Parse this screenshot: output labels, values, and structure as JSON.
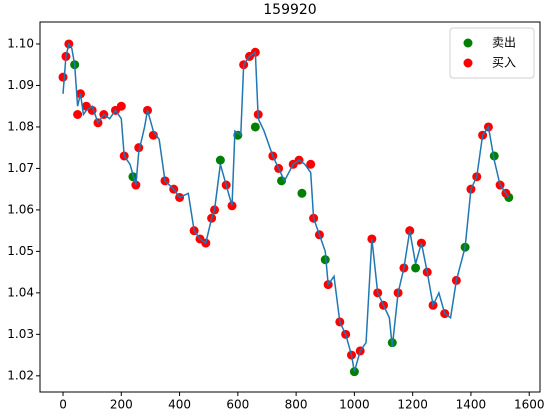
{
  "chart_data": {
    "type": "line",
    "title": "159920",
    "line": {
      "color": "#1f77b4",
      "x": [
        0,
        10,
        20,
        30,
        40,
        50,
        60,
        70,
        80,
        100,
        120,
        140,
        160,
        180,
        200,
        210,
        230,
        250,
        260,
        280,
        290,
        310,
        330,
        350,
        380,
        400,
        430,
        450,
        470,
        490,
        510,
        520,
        540,
        560,
        580,
        590,
        610,
        620,
        640,
        660,
        670,
        690,
        720,
        740,
        760,
        790,
        810,
        830,
        850,
        860,
        880,
        900,
        910,
        930,
        950,
        970,
        990,
        1000,
        1020,
        1040,
        1060,
        1080,
        1100,
        1120,
        1130,
        1150,
        1170,
        1190,
        1210,
        1230,
        1250,
        1270,
        1290,
        1310,
        1330,
        1350,
        1380,
        1400,
        1420,
        1440,
        1460,
        1480,
        1500,
        1520,
        1530
      ],
      "values": [
        1.088,
        1.097,
        1.1,
        1.099,
        1.095,
        1.085,
        1.088,
        1.083,
        1.084,
        1.085,
        1.081,
        1.083,
        1.082,
        1.084,
        1.082,
        1.073,
        1.071,
        1.066,
        1.074,
        1.08,
        1.084,
        1.079,
        1.077,
        1.067,
        1.065,
        1.063,
        1.064,
        1.055,
        1.053,
        1.052,
        1.058,
        1.06,
        1.071,
        1.066,
        1.061,
        1.079,
        1.078,
        1.095,
        1.097,
        1.098,
        1.082,
        1.079,
        1.073,
        1.07,
        1.067,
        1.071,
        1.072,
        1.071,
        1.069,
        1.058,
        1.054,
        1.05,
        1.042,
        1.044,
        1.033,
        1.03,
        1.025,
        1.021,
        1.026,
        1.028,
        1.053,
        1.04,
        1.037,
        1.034,
        1.027,
        1.04,
        1.046,
        1.055,
        1.047,
        1.052,
        1.045,
        1.037,
        1.04,
        1.035,
        1.034,
        1.043,
        1.051,
        1.065,
        1.068,
        1.078,
        1.08,
        1.072,
        1.066,
        1.064,
        1.063
      ]
    },
    "series": [
      {
        "name": "卖出",
        "color": "green",
        "x": [
          40,
          240,
          540,
          600,
          660,
          750,
          820,
          900,
          1000,
          1130,
          1210,
          1380,
          1480,
          1530
        ],
        "values": [
          1.095,
          1.068,
          1.072,
          1.078,
          1.08,
          1.067,
          1.064,
          1.048,
          1.021,
          1.028,
          1.046,
          1.051,
          1.073,
          1.063
        ]
      },
      {
        "name": "买入",
        "color": "red",
        "x": [
          0,
          10,
          20,
          50,
          60,
          80,
          100,
          120,
          140,
          180,
          200,
          210,
          250,
          260,
          290,
          310,
          350,
          380,
          400,
          450,
          470,
          490,
          510,
          520,
          560,
          580,
          620,
          640,
          660,
          670,
          720,
          740,
          790,
          810,
          850,
          860,
          880,
          910,
          950,
          970,
          990,
          1020,
          1060,
          1080,
          1100,
          1150,
          1170,
          1190,
          1230,
          1250,
          1270,
          1310,
          1350,
          1400,
          1420,
          1440,
          1460,
          1500,
          1520
        ],
        "values": [
          1.092,
          1.097,
          1.1,
          1.083,
          1.088,
          1.085,
          1.084,
          1.081,
          1.083,
          1.084,
          1.085,
          1.073,
          1.066,
          1.075,
          1.084,
          1.078,
          1.067,
          1.065,
          1.063,
          1.055,
          1.053,
          1.052,
          1.058,
          1.06,
          1.066,
          1.061,
          1.095,
          1.097,
          1.098,
          1.083,
          1.073,
          1.07,
          1.071,
          1.072,
          1.071,
          1.058,
          1.054,
          1.042,
          1.033,
          1.03,
          1.025,
          1.026,
          1.053,
          1.04,
          1.037,
          1.04,
          1.046,
          1.055,
          1.052,
          1.045,
          1.037,
          1.035,
          1.043,
          1.065,
          1.068,
          1.078,
          1.08,
          1.066,
          1.064
        ]
      }
    ],
    "xlim": [
      -79,
      1637
    ],
    "ylim": [
      1.0161,
      1.1053
    ],
    "xticks": [
      0,
      200,
      400,
      600,
      800,
      1000,
      1200,
      1400,
      1600
    ],
    "yticks": [
      1.02,
      1.03,
      1.04,
      1.05,
      1.06,
      1.07,
      1.08,
      1.09,
      {
        "value": 1.1,
        "label": "1.10"
      }
    ],
    "legend": "upper right"
  }
}
